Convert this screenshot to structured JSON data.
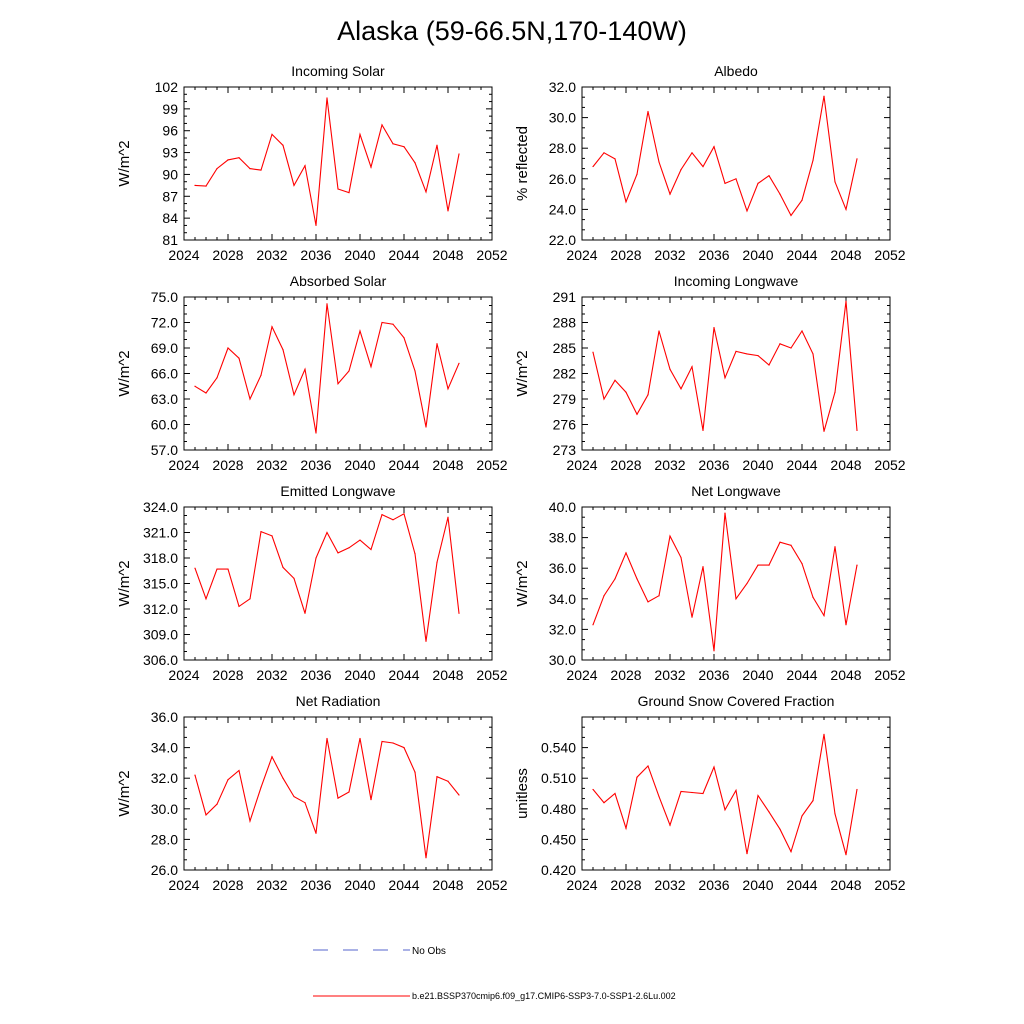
{
  "title": "Alaska (59-66.5N,170-140W)",
  "chart_data": [
    {
      "type": "line",
      "title": "Incoming Solar",
      "ylabel": "W/m^2",
      "xlim": [
        2024,
        2052
      ],
      "ylim": [
        81,
        102
      ],
      "xticks": [
        "2024",
        "2028",
        "2032",
        "2036",
        "2040",
        "2044",
        "2048",
        "2052"
      ],
      "yticks": [
        "81",
        "84",
        "87",
        "90",
        "93",
        "96",
        "99",
        "102"
      ],
      "x": [
        2025,
        2026,
        2027,
        2028,
        2029,
        2030,
        2031,
        2032,
        2033,
        2034,
        2035,
        2036,
        2037,
        2038,
        2039,
        2040,
        2041,
        2042,
        2043,
        2044,
        2045,
        2046,
        2047,
        2048,
        2049
      ],
      "values": [
        88.5,
        88.4,
        90.8,
        92.0,
        92.3,
        90.8,
        90.6,
        95.5,
        94.0,
        88.5,
        91.2,
        83.0,
        100.5,
        88.0,
        87.5,
        95.5,
        91.0,
        96.8,
        94.2,
        93.8,
        91.6,
        87.6,
        94.0,
        85.0,
        92.8
      ]
    },
    {
      "type": "line",
      "title": "Albedo",
      "ylabel": "% reflected",
      "xlim": [
        2024,
        2052
      ],
      "ylim": [
        22,
        32
      ],
      "xticks": [
        "2024",
        "2028",
        "2032",
        "2036",
        "2040",
        "2044",
        "2048",
        "2052"
      ],
      "yticks": [
        "22.0",
        "24.0",
        "26.0",
        "28.0",
        "30.0",
        "32.0"
      ],
      "x": [
        2025,
        2026,
        2027,
        2028,
        2029,
        2030,
        2031,
        2032,
        2033,
        2034,
        2035,
        2036,
        2037,
        2038,
        2039,
        2040,
        2041,
        2042,
        2043,
        2044,
        2045,
        2046,
        2047,
        2048,
        2049
      ],
      "values": [
        26.8,
        27.7,
        27.3,
        24.5,
        26.3,
        30.4,
        27.1,
        25.0,
        26.6,
        27.7,
        26.8,
        28.1,
        25.7,
        26.0,
        23.9,
        25.7,
        26.2,
        25.0,
        23.6,
        24.6,
        27.2,
        31.4,
        25.8,
        24.0,
        27.3
      ]
    },
    {
      "type": "line",
      "title": "Absorbed Solar",
      "ylabel": "W/m^2",
      "xlim": [
        2024,
        2052
      ],
      "ylim": [
        57,
        75
      ],
      "xticks": [
        "2024",
        "2028",
        "2032",
        "2036",
        "2040",
        "2044",
        "2048",
        "2052"
      ],
      "yticks": [
        "57.0",
        "60.0",
        "63.0",
        "66.0",
        "69.0",
        "72.0",
        "75.0"
      ],
      "x": [
        2025,
        2026,
        2027,
        2028,
        2029,
        2030,
        2031,
        2032,
        2033,
        2034,
        2035,
        2036,
        2037,
        2038,
        2039,
        2040,
        2041,
        2042,
        2043,
        2044,
        2045,
        2046,
        2047,
        2048,
        2049
      ],
      "values": [
        64.5,
        63.7,
        65.5,
        69.0,
        67.8,
        63.0,
        65.8,
        71.5,
        68.8,
        63.5,
        66.5,
        59.0,
        74.2,
        64.8,
        66.3,
        71.0,
        66.8,
        72.0,
        71.8,
        70.2,
        66.3,
        59.7,
        69.5,
        64.2,
        67.2
      ]
    },
    {
      "type": "line",
      "title": "Incoming Longwave",
      "ylabel": "W/m^2",
      "xlim": [
        2024,
        2052
      ],
      "ylim": [
        273,
        291
      ],
      "xticks": [
        "2024",
        "2028",
        "2032",
        "2036",
        "2040",
        "2044",
        "2048",
        "2052"
      ],
      "yticks": [
        "273",
        "276",
        "279",
        "282",
        "285",
        "288",
        "291"
      ],
      "x": [
        2025,
        2026,
        2027,
        2028,
        2029,
        2030,
        2031,
        2032,
        2033,
        2034,
        2035,
        2036,
        2037,
        2038,
        2039,
        2040,
        2041,
        2042,
        2043,
        2044,
        2045,
        2046,
        2047,
        2048,
        2049
      ],
      "values": [
        284.5,
        279.0,
        281.2,
        279.8,
        277.2,
        279.5,
        287.0,
        282.5,
        280.2,
        282.8,
        275.3,
        287.4,
        281.5,
        284.6,
        284.3,
        284.1,
        283.0,
        285.5,
        285.0,
        287.0,
        284.3,
        275.2,
        279.8,
        290.5,
        275.3
      ]
    },
    {
      "type": "line",
      "title": "Emitted Longwave",
      "ylabel": "W/m^2",
      "xlim": [
        2024,
        2052
      ],
      "ylim": [
        306,
        324
      ],
      "xticks": [
        "2024",
        "2028",
        "2032",
        "2036",
        "2040",
        "2044",
        "2048",
        "2052"
      ],
      "yticks": [
        "306.0",
        "309.0",
        "312.0",
        "315.0",
        "318.0",
        "321.0",
        "324.0"
      ],
      "x": [
        2025,
        2026,
        2027,
        2028,
        2029,
        2030,
        2031,
        2032,
        2033,
        2034,
        2035,
        2036,
        2037,
        2038,
        2039,
        2040,
        2041,
        2042,
        2043,
        2044,
        2045,
        2046,
        2047,
        2048,
        2049
      ],
      "values": [
        316.8,
        313.2,
        316.7,
        316.7,
        312.3,
        313.2,
        321.1,
        320.6,
        316.9,
        315.6,
        311.5,
        318.0,
        321.0,
        318.6,
        319.2,
        320.1,
        319.0,
        323.1,
        322.5,
        323.2,
        318.5,
        308.2,
        317.5,
        322.8,
        311.5
      ]
    },
    {
      "type": "line",
      "title": "Net Longwave",
      "ylabel": "W/m^2",
      "xlim": [
        2024,
        2052
      ],
      "ylim": [
        30,
        40
      ],
      "xticks": [
        "2024",
        "2028",
        "2032",
        "2036",
        "2040",
        "2044",
        "2048",
        "2052"
      ],
      "yticks": [
        "30.0",
        "32.0",
        "34.0",
        "36.0",
        "38.0",
        "40.0"
      ],
      "x": [
        2025,
        2026,
        2027,
        2028,
        2029,
        2030,
        2031,
        2032,
        2033,
        2034,
        2035,
        2036,
        2037,
        2038,
        2039,
        2040,
        2041,
        2042,
        2043,
        2044,
        2045,
        2046,
        2047,
        2048,
        2049
      ],
      "values": [
        32.3,
        34.2,
        35.3,
        37.0,
        35.3,
        33.8,
        34.2,
        38.1,
        36.7,
        32.8,
        36.1,
        30.6,
        39.6,
        34.0,
        35.0,
        36.2,
        36.2,
        37.7,
        37.5,
        36.3,
        34.1,
        32.9,
        37.4,
        32.3,
        36.2
      ]
    },
    {
      "type": "line",
      "title": "Net Radiation",
      "ylabel": "W/m^2",
      "xlim": [
        2024,
        2052
      ],
      "ylim": [
        26,
        36
      ],
      "xticks": [
        "2024",
        "2028",
        "2032",
        "2036",
        "2040",
        "2044",
        "2048",
        "2052"
      ],
      "yticks": [
        "26.0",
        "28.0",
        "30.0",
        "32.0",
        "34.0",
        "36.0"
      ],
      "x": [
        2025,
        2026,
        2027,
        2028,
        2029,
        2030,
        2031,
        2032,
        2033,
        2034,
        2035,
        2036,
        2037,
        2038,
        2039,
        2040,
        2041,
        2042,
        2043,
        2044,
        2045,
        2046,
        2047,
        2048,
        2049
      ],
      "values": [
        32.2,
        29.6,
        30.3,
        31.9,
        32.5,
        29.2,
        31.4,
        33.4,
        32.0,
        30.8,
        30.4,
        28.4,
        34.6,
        30.7,
        31.1,
        34.6,
        30.6,
        34.4,
        34.3,
        34.0,
        32.4,
        26.8,
        32.1,
        31.8,
        30.9
      ]
    },
    {
      "type": "line",
      "title": "Ground Snow Covered Fraction",
      "ylabel": "unitless",
      "xlim": [
        2024,
        2052
      ],
      "ylim": [
        0.42,
        0.57
      ],
      "xticks": [
        "2024",
        "2028",
        "2032",
        "2036",
        "2040",
        "2044",
        "2048",
        "2052"
      ],
      "yticks": [
        "0.420",
        "0.450",
        "0.480",
        "0.510",
        "0.540"
      ],
      "x": [
        2025,
        2026,
        2027,
        2028,
        2029,
        2030,
        2031,
        2032,
        2033,
        2034,
        2035,
        2036,
        2037,
        2038,
        2039,
        2040,
        2041,
        2042,
        2043,
        2044,
        2045,
        2046,
        2047,
        2048,
        2049
      ],
      "values": [
        0.499,
        0.486,
        0.495,
        0.461,
        0.511,
        0.522,
        0.492,
        0.464,
        0.497,
        0.496,
        0.495,
        0.521,
        0.479,
        0.498,
        0.436,
        0.493,
        0.477,
        0.46,
        0.438,
        0.473,
        0.488,
        0.553,
        0.475,
        0.435,
        0.499
      ]
    }
  ],
  "legend": [
    {
      "label": "No Obs",
      "color": "#5566cc",
      "dash": true
    },
    {
      "label": "b.e21.BSSP370cmip6.f09_g17.CMIP6-SSP3-7.0-SSP1-2.6Lu.002",
      "color": "#ff0000",
      "dash": false
    }
  ]
}
